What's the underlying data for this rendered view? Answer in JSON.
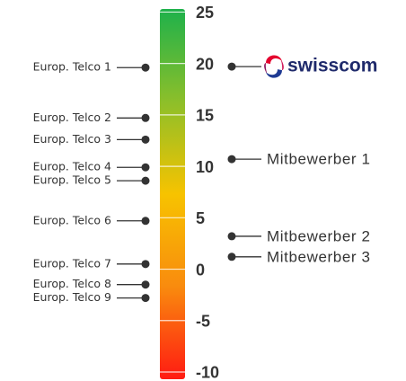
{
  "chart_data": {
    "type": "scale",
    "ylim": [
      -10.7,
      25.3
    ],
    "yticks": [
      25,
      20,
      15,
      10,
      5,
      0,
      -5,
      -10
    ],
    "colors": [
      "#1db14b",
      "#8cbf2a",
      "#f7c300",
      "#f98b0e",
      "#ff1a12"
    ],
    "left": {
      "color": "#333333",
      "labels": [
        "Europ. Telco 1",
        "Europ. Telco 2",
        "Europ. Telco 3",
        "Europ. Telco 4",
        "Europ. Telco 5",
        "Europ. Telco 6",
        "Europ. Telco 7",
        "Europ. Telco 8",
        "Europ. Telco 9"
      ],
      "values": [
        19.6,
        14.7,
        12.6,
        9.9,
        8.6,
        4.7,
        0.5,
        -1.5,
        -2.8
      ]
    },
    "right": {
      "color": "#333333",
      "labels": [
        "swisscom",
        "Mitbewerber 1",
        "Mitbewerber 2",
        "Mitbewerber 3"
      ],
      "values": [
        19.7,
        10.7,
        3.2,
        1.2
      ]
    }
  }
}
